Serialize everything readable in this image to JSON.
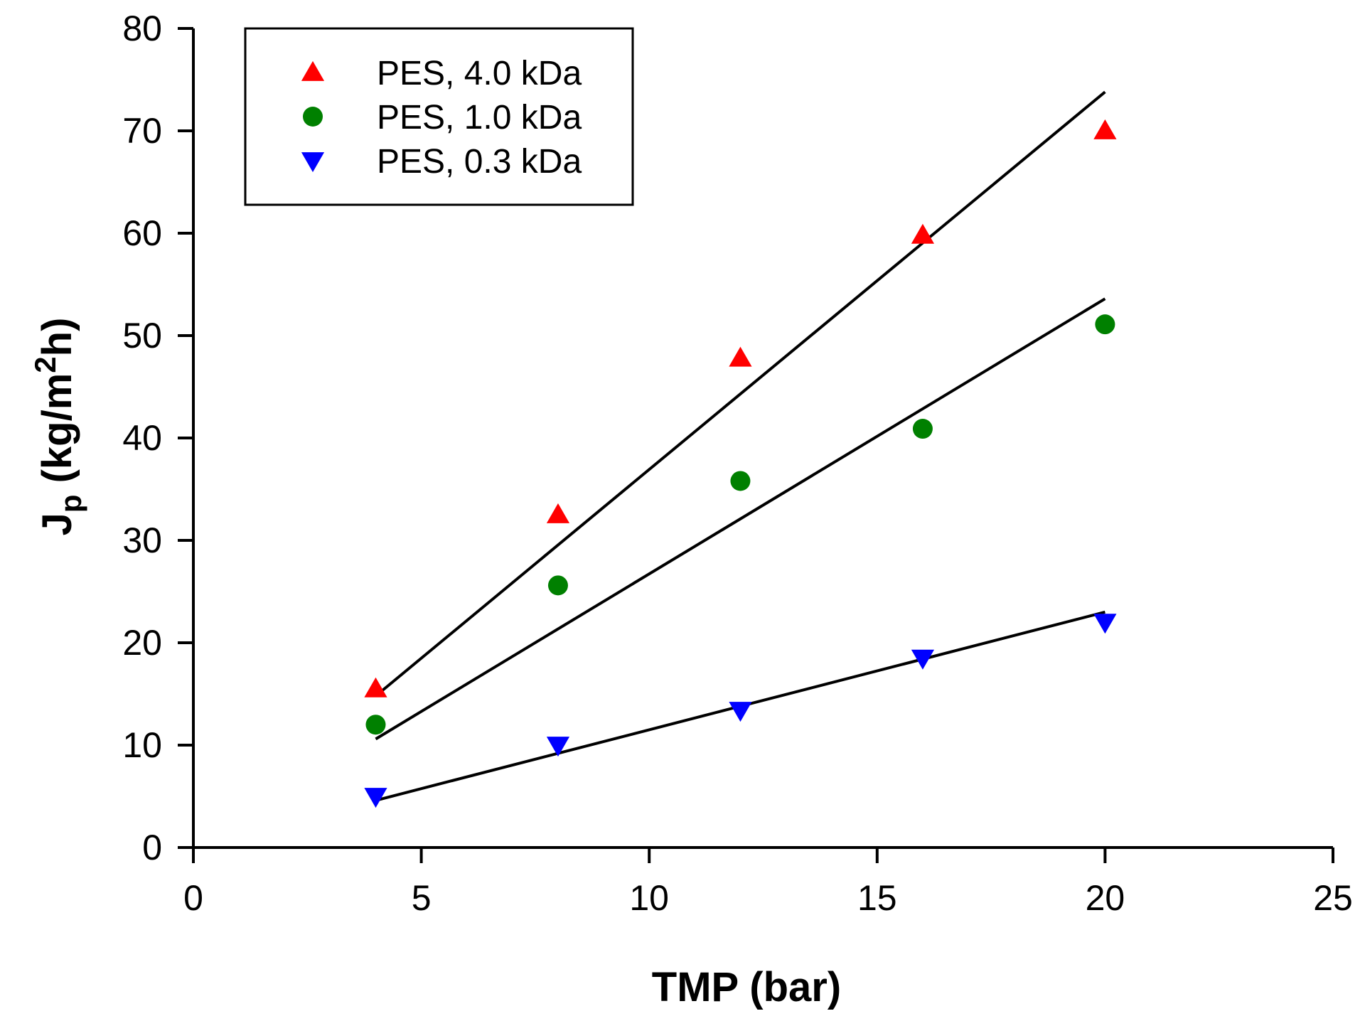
{
  "chart_data": {
    "type": "scatter",
    "title": "",
    "xlabel": "TMP (bar)",
    "ylabel": {
      "main": "J",
      "sub": "p",
      "unit_open": " (kg/m",
      "unit_sup": "2",
      "unit_close": "h)"
    },
    "xlim": [
      0,
      25
    ],
    "ylim": [
      0,
      80
    ],
    "xticks": [
      0,
      5,
      10,
      15,
      20,
      25
    ],
    "yticks": [
      0,
      10,
      20,
      30,
      40,
      50,
      60,
      70,
      80
    ],
    "grid": false,
    "legend_position": "top-left",
    "series": [
      {
        "name": "PES, 4.0 kDa",
        "marker": "triangle-up",
        "color": "#ff0000",
        "x": [
          4,
          8,
          12,
          16,
          20
        ],
        "y": [
          15.5,
          32.5,
          47.8,
          59.8,
          70.0
        ],
        "fit": {
          "x": [
            4,
            20
          ],
          "y": [
            14.8,
            73.8
          ]
        }
      },
      {
        "name": "PES, 1.0 kDa",
        "marker": "circle",
        "color": "#008000",
        "x": [
          4,
          8,
          12,
          16,
          20
        ],
        "y": [
          12.0,
          25.6,
          35.8,
          40.9,
          51.1
        ],
        "fit": {
          "x": [
            4,
            20
          ],
          "y": [
            10.6,
            53.6
          ]
        }
      },
      {
        "name": "PES, 0.3 kDa",
        "marker": "triangle-down",
        "color": "#0000ff",
        "x": [
          4,
          8,
          12,
          16,
          20
        ],
        "y": [
          5.0,
          10.0,
          13.4,
          18.5,
          22.0
        ],
        "fit": {
          "x": [
            4,
            20
          ],
          "y": [
            4.6,
            23.0
          ]
        }
      }
    ]
  }
}
